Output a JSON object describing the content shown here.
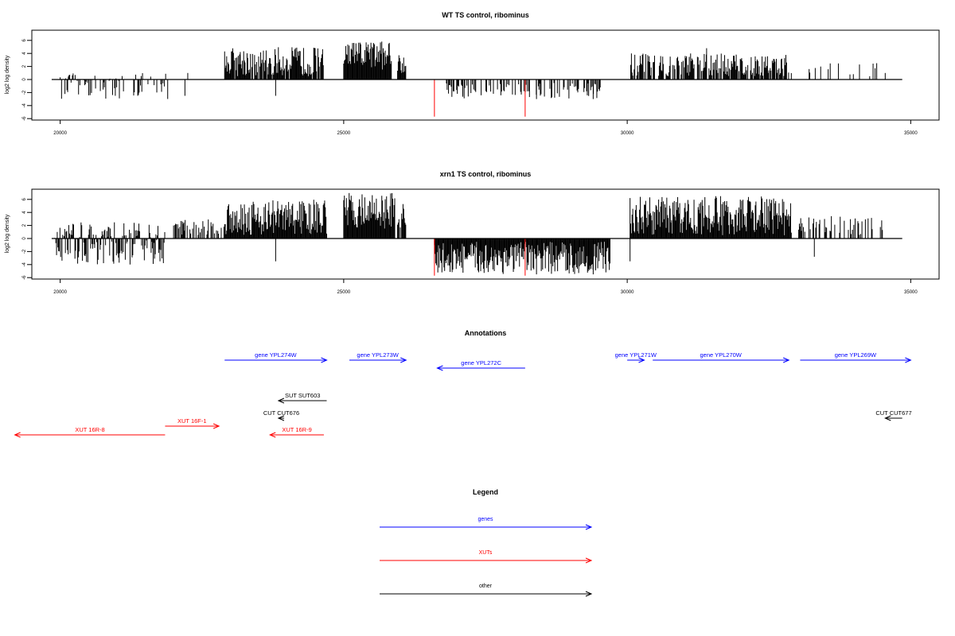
{
  "colors": {
    "gene": "#0000ff",
    "xut": "#ff0000",
    "other": "#000000",
    "highlight": "#ff0000",
    "bar": "#000000"
  },
  "panels": [
    {
      "title": "WT TS control, ribominus",
      "ylabel": "log2 log density"
    },
    {
      "title": "xrn1 TS control, ribominus",
      "ylabel": "log2 log density"
    }
  ],
  "y_tick_labels": [
    "-6",
    "-4",
    "-2",
    "0",
    "2",
    "4",
    "6"
  ],
  "x_tick_labels": [
    "20000",
    "25000",
    "30000",
    "35000"
  ],
  "annotations_title": "Annotations",
  "legend": {
    "title": "Legend",
    "items": [
      {
        "label": "genes",
        "type": "gene"
      },
      {
        "label": "XUTs",
        "type": "xut"
      },
      {
        "label": "other",
        "type": "other"
      }
    ]
  },
  "chart_data": {
    "type": "bar",
    "x_domain": [
      19500,
      35500
    ],
    "ylim": [
      -6,
      7
    ],
    "xticks": [
      20000,
      25000,
      30000,
      35000
    ],
    "yticks": [
      -6,
      -4,
      -2,
      0,
      2,
      4,
      6
    ],
    "baseline": [
      19850,
      34850
    ],
    "grid": false,
    "series": [
      {
        "name": "WT TS control, ribominus",
        "segments": [
          {
            "start": 20000,
            "end": 21900,
            "min": -3,
            "max": 1,
            "density": 0.35
          },
          {
            "start": 22250,
            "end": 22250,
            "min": 1,
            "max": 1,
            "density": 1
          },
          {
            "start": 22900,
            "end": 24650,
            "min": 0.5,
            "max": 5,
            "density": 0.9
          },
          {
            "start": 25000,
            "end": 25850,
            "min": 1.5,
            "max": 6,
            "density": 1
          },
          {
            "start": 25950,
            "end": 26100,
            "min": 1,
            "max": 4,
            "density": 0.9
          },
          {
            "start": 26800,
            "end": 29700,
            "min": -3,
            "max": -0.5,
            "density": 0.35
          },
          {
            "start": 30050,
            "end": 32900,
            "min": 0.5,
            "max": 4,
            "density": 0.8
          },
          {
            "start": 33100,
            "end": 34700,
            "min": 0.5,
            "max": 2.5,
            "density": 0.1
          }
        ],
        "spikes": [
          {
            "x": 22200,
            "y": -2.5
          },
          {
            "x": 23800,
            "y": -2.5
          },
          {
            "x": 28400,
            "y": -3
          },
          {
            "x": 29400,
            "y": -3
          },
          {
            "x": 31400,
            "y": 4.8
          },
          {
            "x": 34400,
            "y": 2.5
          },
          {
            "x": 34550,
            "y": 1
          }
        ],
        "highlights": [
          {
            "x": 26600,
            "y": -5.7
          },
          {
            "x": 28200,
            "y": -5.7
          }
        ]
      },
      {
        "name": "xrn1 TS control, ribominus",
        "segments": [
          {
            "start": 19900,
            "end": 21850,
            "min": -4,
            "max": 2.5,
            "density": 0.85
          },
          {
            "start": 22000,
            "end": 22900,
            "min": 0.5,
            "max": 3,
            "density": 0.5
          },
          {
            "start": 22900,
            "end": 24700,
            "min": 0.5,
            "max": 6,
            "density": 1
          },
          {
            "start": 25000,
            "end": 25900,
            "min": 1.5,
            "max": 7,
            "density": 1
          },
          {
            "start": 25950,
            "end": 26100,
            "min": 0.5,
            "max": 5.5,
            "density": 0.9
          },
          {
            "start": 26600,
            "end": 29700,
            "min": -5.5,
            "max": -0.5,
            "density": 1
          },
          {
            "start": 30050,
            "end": 32900,
            "min": 0.5,
            "max": 6.5,
            "density": 1
          },
          {
            "start": 33000,
            "end": 34500,
            "min": 0.5,
            "max": 3.5,
            "density": 0.4
          }
        ],
        "spikes": [
          {
            "x": 23800,
            "y": -3.5
          },
          {
            "x": 30050,
            "y": -3.5
          },
          {
            "x": 33300,
            "y": -2.8
          },
          {
            "x": 29400,
            "y": -5.5
          },
          {
            "x": 28400,
            "y": -5.5
          }
        ],
        "highlights": [
          {
            "x": 26600,
            "y": -5.7
          },
          {
            "x": 28200,
            "y": -5.7
          }
        ]
      }
    ],
    "annotations": [
      {
        "label": "gene YPL274W",
        "type": "gene",
        "start": 22900,
        "end": 24700,
        "row": 0
      },
      {
        "label": "gene YPL273W",
        "type": "gene",
        "start": 25100,
        "end": 26100,
        "row": 0
      },
      {
        "label": "gene YPL272C",
        "type": "gene",
        "start": 28200,
        "end": 26650,
        "row": 1
      },
      {
        "label": "gene YPL271W",
        "type": "gene",
        "start": 30000,
        "end": 30300,
        "row": 0
      },
      {
        "label": "gene YPL270W",
        "type": "gene",
        "start": 30450,
        "end": 32850,
        "row": 0
      },
      {
        "label": "gene YPL269W",
        "type": "gene",
        "start": 33050,
        "end": 35000,
        "row": 0
      },
      {
        "label": "SUT SUT603",
        "type": "other",
        "start": 24700,
        "end": 23850,
        "row": 2
      },
      {
        "label": "CUT CUT676",
        "type": "other",
        "start": 23950,
        "end": 23850,
        "row": 3
      },
      {
        "label": "CUT CUT677",
        "type": "other",
        "start": 34850,
        "end": 34550,
        "row": 3
      },
      {
        "label": "XUT 16F-1",
        "type": "xut",
        "start": 21850,
        "end": 22800,
        "row": 4
      },
      {
        "label": "XUT 16R-8",
        "type": "xut",
        "start": 21850,
        "end": 19200,
        "row": 5
      },
      {
        "label": "XUT 16R-9",
        "type": "xut",
        "start": 24650,
        "end": 23700,
        "row": 5
      }
    ]
  }
}
